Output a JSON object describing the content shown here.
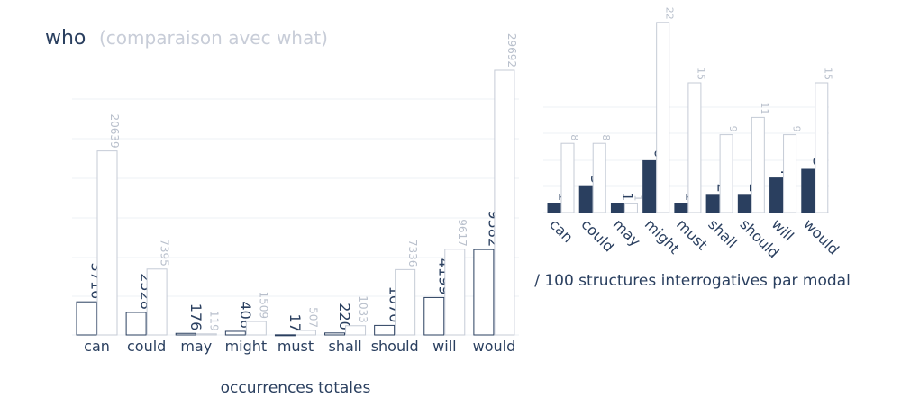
{
  "title": "who",
  "subtitle": "(comparaison avec what)",
  "colors": {
    "main_fill_left": "#ffffff",
    "main_fill_right": "#2a3f5f",
    "main_stroke": "#2a3f5f",
    "ref_fill": "#ffffff",
    "ref_stroke": "#c5cbd6",
    "main_label": "#2a3f5f",
    "ref_label": "#b9c0cc",
    "grid": "#eef0f4"
  },
  "chart_data": [
    {
      "type": "bar",
      "xlabel": "occurrences totales",
      "ylabel": "",
      "categories": [
        "can",
        "could",
        "may",
        "might",
        "must",
        "shall",
        "should",
        "will",
        "would"
      ],
      "series": [
        {
          "values": [
            3716,
            2528,
            176,
            406,
            17,
            220,
            1070,
            4199,
            9582
          ]
        },
        {
          "values": [
            20639,
            7395,
            119,
            1509,
            507,
            1033,
            7336,
            9617,
            29692
          ]
        }
      ],
      "ylim": [
        0,
        30500
      ],
      "grid": true
    },
    {
      "type": "bar",
      "xlabel": "/ 100 structures interrogatives par modal",
      "ylabel": "",
      "categories": [
        "can",
        "could",
        "may",
        "might",
        "must",
        "shall",
        "should",
        "will",
        "would"
      ],
      "series": [
        {
          "values": [
            1,
            3,
            1,
            6,
            1,
            2,
            2,
            4,
            5
          ]
        },
        {
          "values": [
            8,
            8,
            1,
            22,
            15,
            9,
            11,
            9,
            15
          ]
        }
      ],
      "ylim": [
        0,
        22.5
      ],
      "grid": true
    }
  ]
}
